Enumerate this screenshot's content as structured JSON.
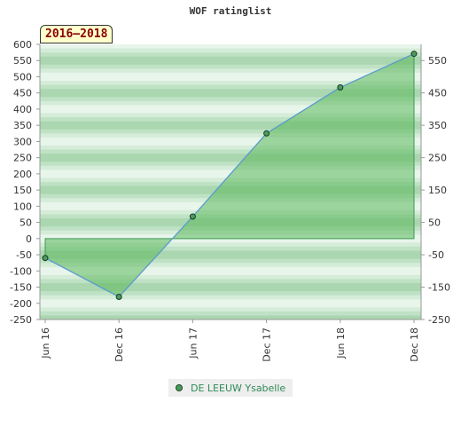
{
  "title": "WOF ratinglist",
  "badge": "2016–2018",
  "chart_data": {
    "type": "area",
    "x": [
      "Jun 16",
      "Dec 16",
      "Jun 17",
      "Dec 17",
      "Jun 18",
      "Dec 18"
    ],
    "series": [
      {
        "name": "DE LEEUW Ysabelle",
        "values": [
          -60,
          -180,
          68,
          325,
          467,
          571
        ]
      }
    ],
    "ylim": [
      -250,
      600
    ],
    "yticks_left": [
      "600",
      "550",
      "500",
      "450",
      "400",
      "350",
      "300",
      "250",
      "200",
      "150",
      "100",
      "50",
      "0",
      "-50",
      "-100",
      "-150",
      "-200",
      "-250"
    ],
    "yticks_right": [
      "550",
      "450",
      "350",
      "250",
      "150",
      "50",
      "-50",
      "-150",
      "-250"
    ],
    "legend": "bottom",
    "colors": {
      "fill": "#5cb85c",
      "line": "#5b9bd5",
      "marker": "#4a9a5e",
      "band_dark": "#aad6b0",
      "band_light": "#e8f5ea"
    }
  }
}
